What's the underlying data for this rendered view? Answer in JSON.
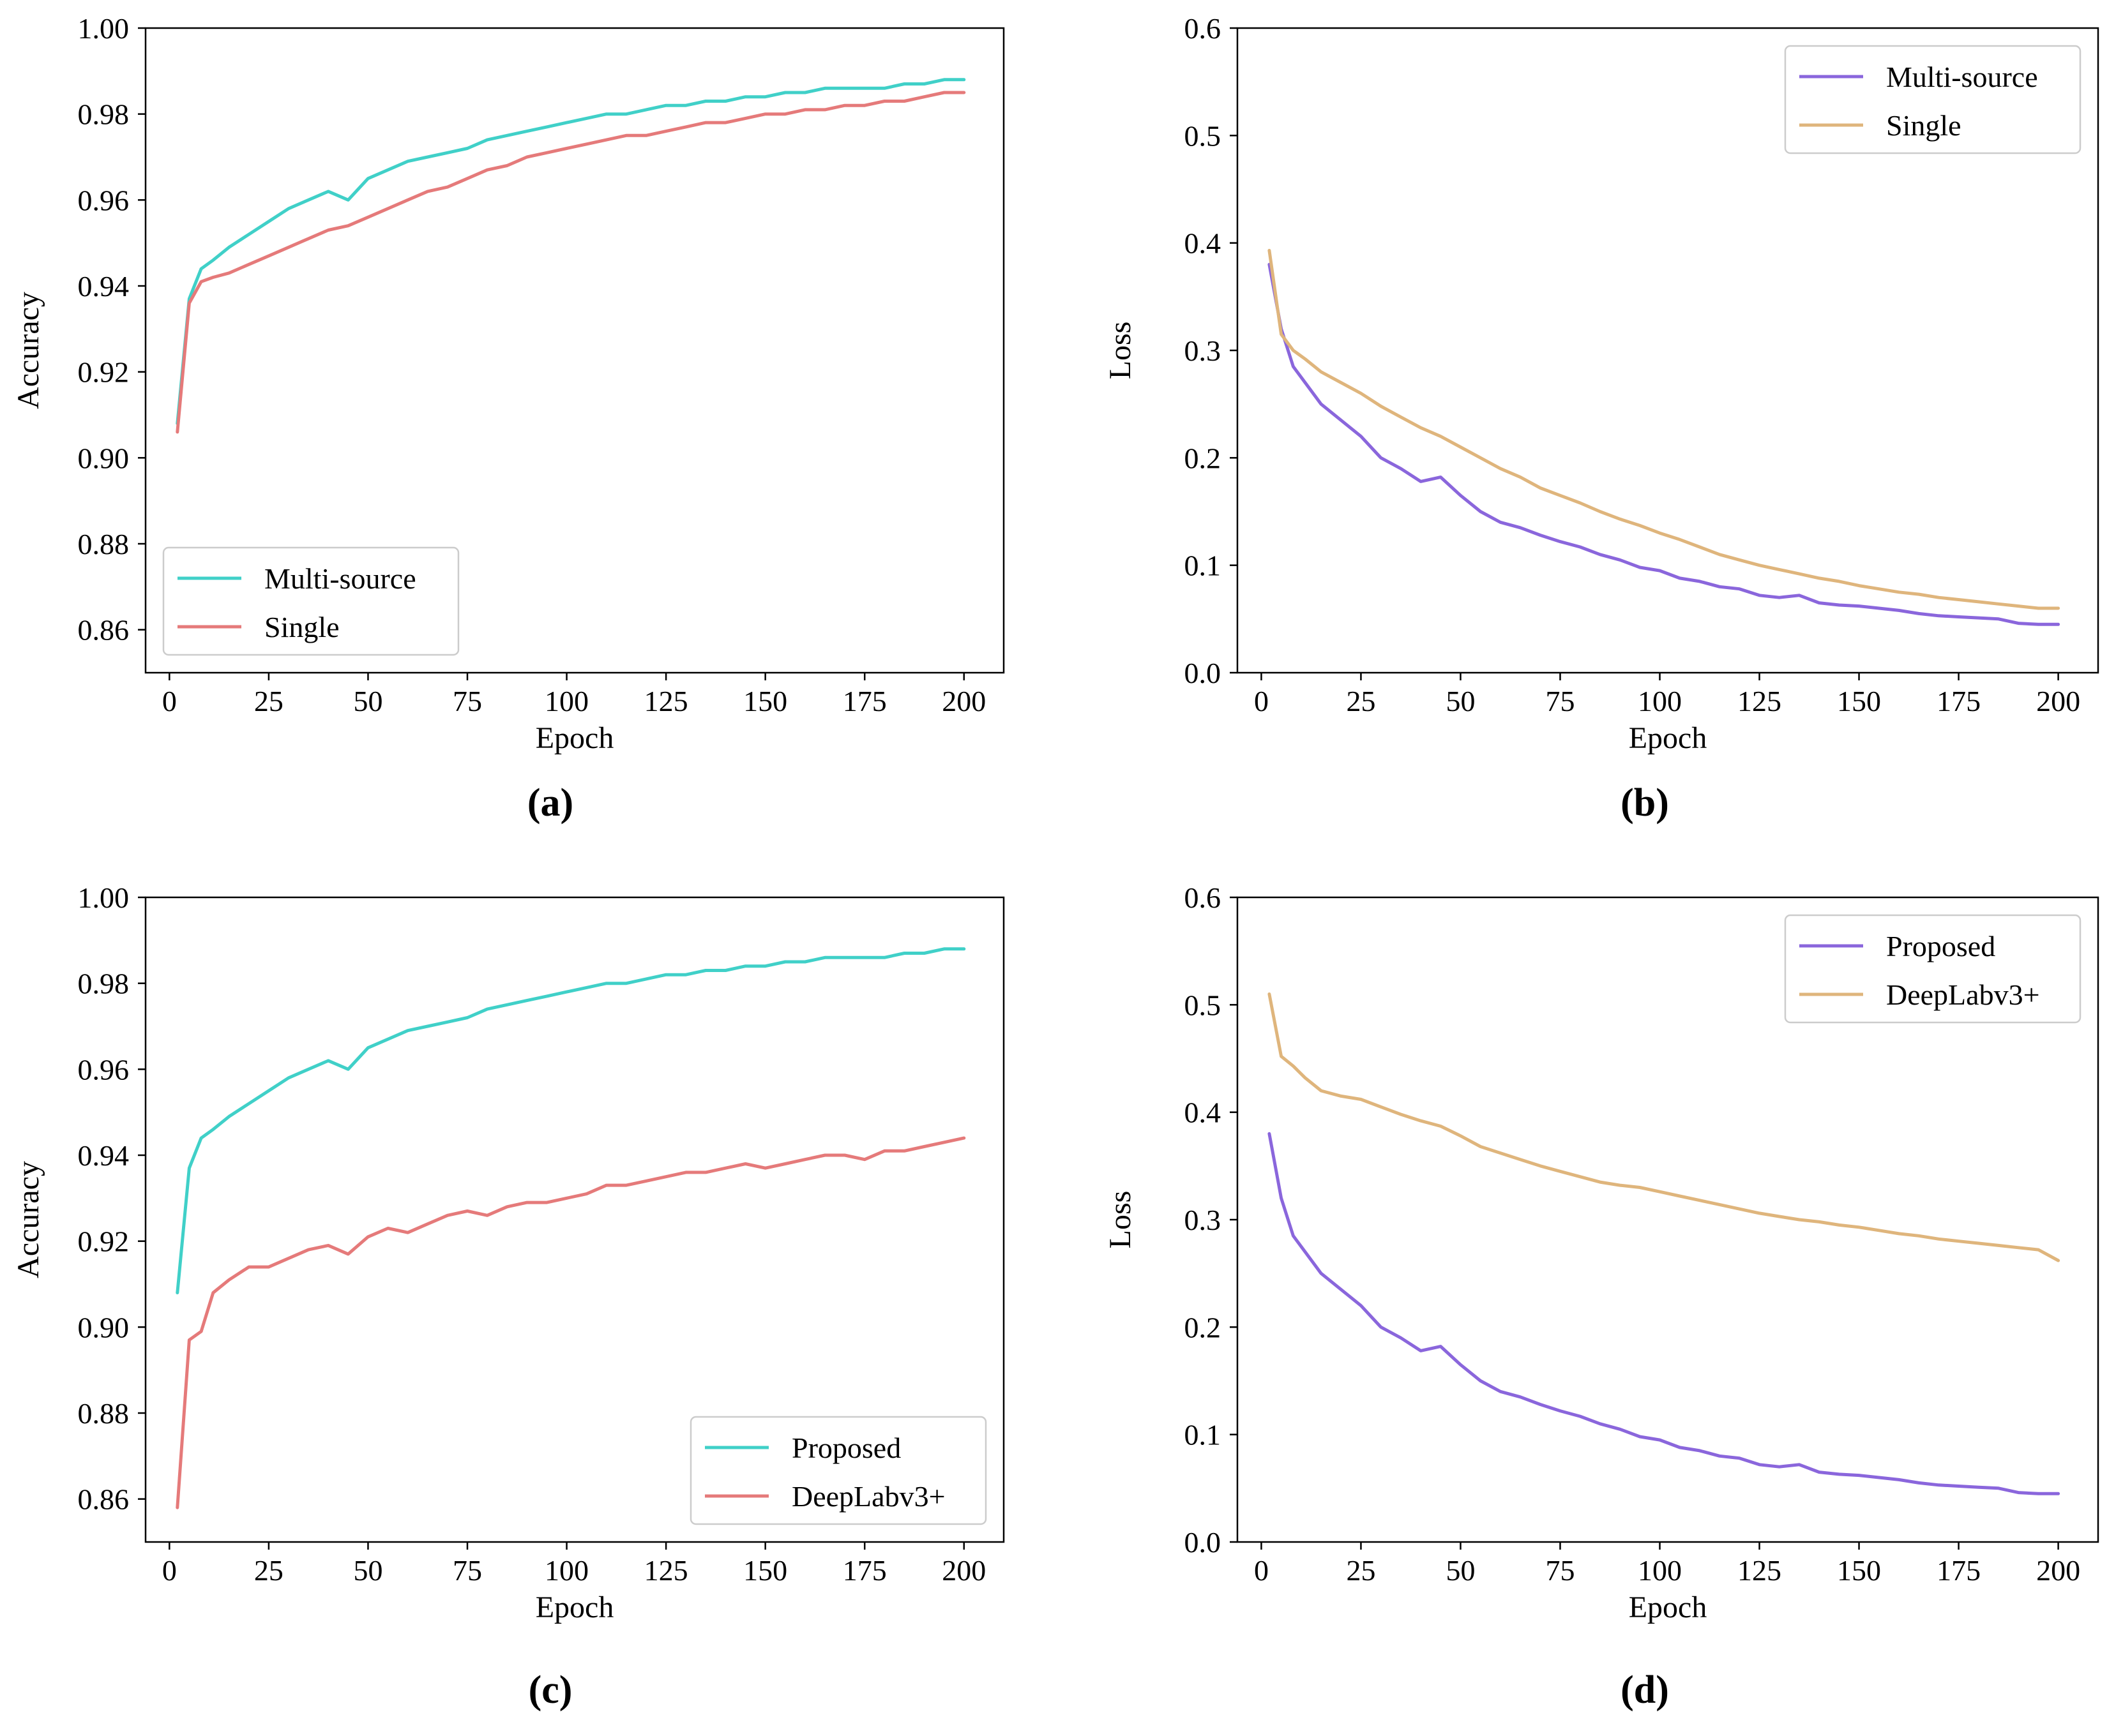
{
  "chart_data": [
    {
      "id": "a",
      "type": "line",
      "panel_label": "(a)",
      "xlabel": "Epoch",
      "ylabel": "Accuracy",
      "xlim": [
        -6,
        210
      ],
      "ylim": [
        0.85,
        1.0
      ],
      "xticks": [
        0,
        25,
        50,
        75,
        100,
        125,
        150,
        175,
        200
      ],
      "xtick_labels": [
        "0",
        "25",
        "50",
        "75",
        "100",
        "125",
        "150",
        "175",
        "200"
      ],
      "yticks": [
        0.86,
        0.88,
        0.9,
        0.92,
        0.94,
        0.96,
        0.98,
        1.0
      ],
      "ytick_labels": [
        "0.86",
        "0.88",
        "0.90",
        "0.92",
        "0.94",
        "0.96",
        "0.98",
        "1.00"
      ],
      "legend_position": "lower-left",
      "series": [
        {
          "name": "Multi-source",
          "color": "#40d0c8",
          "x": [
            2,
            5,
            8,
            11,
            15,
            20,
            25,
            30,
            35,
            40,
            45,
            50,
            55,
            60,
            65,
            70,
            75,
            80,
            85,
            90,
            95,
            100,
            105,
            110,
            115,
            120,
            125,
            130,
            135,
            140,
            145,
            150,
            155,
            160,
            165,
            170,
            175,
            180,
            185,
            190,
            195,
            200
          ],
          "values": [
            0.908,
            0.937,
            0.944,
            0.946,
            0.949,
            0.952,
            0.955,
            0.958,
            0.96,
            0.962,
            0.96,
            0.965,
            0.967,
            0.969,
            0.97,
            0.971,
            0.972,
            0.974,
            0.975,
            0.976,
            0.977,
            0.978,
            0.979,
            0.98,
            0.98,
            0.981,
            0.982,
            0.982,
            0.983,
            0.983,
            0.984,
            0.984,
            0.985,
            0.985,
            0.986,
            0.986,
            0.986,
            0.986,
            0.987,
            0.987,
            0.988,
            0.988
          ]
        },
        {
          "name": "Single",
          "color": "#e57a7a",
          "x": [
            2,
            5,
            8,
            11,
            15,
            20,
            25,
            30,
            35,
            40,
            45,
            50,
            55,
            60,
            65,
            70,
            75,
            80,
            85,
            90,
            95,
            100,
            105,
            110,
            115,
            120,
            125,
            130,
            135,
            140,
            145,
            150,
            155,
            160,
            165,
            170,
            175,
            180,
            185,
            190,
            195,
            200
          ],
          "values": [
            0.906,
            0.936,
            0.941,
            0.942,
            0.943,
            0.945,
            0.947,
            0.949,
            0.951,
            0.953,
            0.954,
            0.956,
            0.958,
            0.96,
            0.962,
            0.963,
            0.965,
            0.967,
            0.968,
            0.97,
            0.971,
            0.972,
            0.973,
            0.974,
            0.975,
            0.975,
            0.976,
            0.977,
            0.978,
            0.978,
            0.979,
            0.98,
            0.98,
            0.981,
            0.981,
            0.982,
            0.982,
            0.983,
            0.983,
            0.984,
            0.985,
            0.985
          ]
        }
      ]
    },
    {
      "id": "b",
      "type": "line",
      "panel_label": "(b)",
      "xlabel": "Epoch",
      "ylabel": "Loss",
      "xlim": [
        -6,
        210
      ],
      "ylim": [
        0.0,
        0.6
      ],
      "xticks": [
        0,
        25,
        50,
        75,
        100,
        125,
        150,
        175,
        200
      ],
      "xtick_labels": [
        "0",
        "25",
        "50",
        "75",
        "100",
        "125",
        "150",
        "175",
        "200"
      ],
      "yticks": [
        0.0,
        0.1,
        0.2,
        0.3,
        0.4,
        0.5,
        0.6
      ],
      "ytick_labels": [
        "0.0",
        "0.1",
        "0.2",
        "0.3",
        "0.4",
        "0.5",
        "0.6"
      ],
      "legend_position": "upper-right",
      "series": [
        {
          "name": "Multi-source",
          "color": "#8a66dc",
          "x": [
            2,
            5,
            8,
            11,
            15,
            20,
            25,
            30,
            35,
            40,
            45,
            50,
            55,
            60,
            65,
            70,
            75,
            80,
            85,
            90,
            95,
            100,
            105,
            110,
            115,
            120,
            125,
            130,
            135,
            140,
            145,
            150,
            155,
            160,
            165,
            170,
            175,
            180,
            185,
            190,
            195,
            200
          ],
          "values": [
            0.38,
            0.32,
            0.285,
            0.27,
            0.25,
            0.235,
            0.22,
            0.2,
            0.19,
            0.178,
            0.182,
            0.165,
            0.15,
            0.14,
            0.135,
            0.128,
            0.122,
            0.117,
            0.11,
            0.105,
            0.098,
            0.095,
            0.088,
            0.085,
            0.08,
            0.078,
            0.072,
            0.07,
            0.072,
            0.065,
            0.063,
            0.062,
            0.06,
            0.058,
            0.055,
            0.053,
            0.052,
            0.051,
            0.05,
            0.046,
            0.045,
            0.045
          ]
        },
        {
          "name": "Single",
          "color": "#dfb57c",
          "x": [
            2,
            5,
            8,
            11,
            15,
            20,
            25,
            30,
            35,
            40,
            45,
            50,
            55,
            60,
            65,
            70,
            75,
            80,
            85,
            90,
            95,
            100,
            105,
            110,
            115,
            120,
            125,
            130,
            135,
            140,
            145,
            150,
            155,
            160,
            165,
            170,
            175,
            180,
            185,
            190,
            195,
            200
          ],
          "values": [
            0.393,
            0.315,
            0.3,
            0.292,
            0.28,
            0.27,
            0.26,
            0.248,
            0.238,
            0.228,
            0.22,
            0.21,
            0.2,
            0.19,
            0.182,
            0.172,
            0.165,
            0.158,
            0.15,
            0.143,
            0.137,
            0.13,
            0.124,
            0.117,
            0.11,
            0.105,
            0.1,
            0.096,
            0.092,
            0.088,
            0.085,
            0.081,
            0.078,
            0.075,
            0.073,
            0.07,
            0.068,
            0.066,
            0.064,
            0.062,
            0.06,
            0.06
          ]
        }
      ]
    },
    {
      "id": "c",
      "type": "line",
      "panel_label": "(c)",
      "xlabel": "Epoch",
      "ylabel": "Accuracy",
      "xlim": [
        -6,
        210
      ],
      "ylim": [
        0.85,
        1.0
      ],
      "xticks": [
        0,
        25,
        50,
        75,
        100,
        125,
        150,
        175,
        200
      ],
      "xtick_labels": [
        "0",
        "25",
        "50",
        "75",
        "100",
        "125",
        "150",
        "175",
        "200"
      ],
      "yticks": [
        0.86,
        0.88,
        0.9,
        0.92,
        0.94,
        0.96,
        0.98,
        1.0
      ],
      "ytick_labels": [
        "0.86",
        "0.88",
        "0.90",
        "0.92",
        "0.94",
        "0.96",
        "0.98",
        "1.00"
      ],
      "legend_position": "lower-right",
      "series": [
        {
          "name": "Proposed",
          "color": "#40d0c8",
          "x": [
            2,
            5,
            8,
            11,
            15,
            20,
            25,
            30,
            35,
            40,
            45,
            50,
            55,
            60,
            65,
            70,
            75,
            80,
            85,
            90,
            95,
            100,
            105,
            110,
            115,
            120,
            125,
            130,
            135,
            140,
            145,
            150,
            155,
            160,
            165,
            170,
            175,
            180,
            185,
            190,
            195,
            200
          ],
          "values": [
            0.908,
            0.937,
            0.944,
            0.946,
            0.949,
            0.952,
            0.955,
            0.958,
            0.96,
            0.962,
            0.96,
            0.965,
            0.967,
            0.969,
            0.97,
            0.971,
            0.972,
            0.974,
            0.975,
            0.976,
            0.977,
            0.978,
            0.979,
            0.98,
            0.98,
            0.981,
            0.982,
            0.982,
            0.983,
            0.983,
            0.984,
            0.984,
            0.985,
            0.985,
            0.986,
            0.986,
            0.986,
            0.986,
            0.987,
            0.987,
            0.988,
            0.988
          ]
        },
        {
          "name": "DeepLabv3+",
          "color": "#e57a7a",
          "x": [
            2,
            5,
            8,
            11,
            15,
            20,
            25,
            30,
            35,
            40,
            45,
            50,
            55,
            60,
            65,
            70,
            75,
            80,
            85,
            90,
            95,
            100,
            105,
            110,
            115,
            120,
            125,
            130,
            135,
            140,
            145,
            150,
            155,
            160,
            165,
            170,
            175,
            180,
            185,
            190,
            195,
            200
          ],
          "values": [
            0.858,
            0.897,
            0.899,
            0.908,
            0.911,
            0.914,
            0.914,
            0.916,
            0.918,
            0.919,
            0.917,
            0.921,
            0.923,
            0.922,
            0.924,
            0.926,
            0.927,
            0.926,
            0.928,
            0.929,
            0.929,
            0.93,
            0.931,
            0.933,
            0.933,
            0.934,
            0.935,
            0.936,
            0.936,
            0.937,
            0.938,
            0.937,
            0.938,
            0.939,
            0.94,
            0.94,
            0.939,
            0.941,
            0.941,
            0.942,
            0.943,
            0.944
          ]
        }
      ]
    },
    {
      "id": "d",
      "type": "line",
      "panel_label": "(d)",
      "xlabel": "Epoch",
      "ylabel": "Loss",
      "xlim": [
        -6,
        210
      ],
      "ylim": [
        0.0,
        0.6
      ],
      "xticks": [
        0,
        25,
        50,
        75,
        100,
        125,
        150,
        175,
        200
      ],
      "xtick_labels": [
        "0",
        "25",
        "50",
        "75",
        "100",
        "125",
        "150",
        "175",
        "200"
      ],
      "yticks": [
        0.0,
        0.1,
        0.2,
        0.3,
        0.4,
        0.5,
        0.6
      ],
      "ytick_labels": [
        "0.0",
        "0.1",
        "0.2",
        "0.3",
        "0.4",
        "0.5",
        "0.6"
      ],
      "legend_position": "upper-right",
      "series": [
        {
          "name": "Proposed",
          "color": "#8a66dc",
          "x": [
            2,
            5,
            8,
            11,
            15,
            20,
            25,
            30,
            35,
            40,
            45,
            50,
            55,
            60,
            65,
            70,
            75,
            80,
            85,
            90,
            95,
            100,
            105,
            110,
            115,
            120,
            125,
            130,
            135,
            140,
            145,
            150,
            155,
            160,
            165,
            170,
            175,
            180,
            185,
            190,
            195,
            200
          ],
          "values": [
            0.38,
            0.32,
            0.285,
            0.27,
            0.25,
            0.235,
            0.22,
            0.2,
            0.19,
            0.178,
            0.182,
            0.165,
            0.15,
            0.14,
            0.135,
            0.128,
            0.122,
            0.117,
            0.11,
            0.105,
            0.098,
            0.095,
            0.088,
            0.085,
            0.08,
            0.078,
            0.072,
            0.07,
            0.072,
            0.065,
            0.063,
            0.062,
            0.06,
            0.058,
            0.055,
            0.053,
            0.052,
            0.051,
            0.05,
            0.046,
            0.045,
            0.045
          ]
        },
        {
          "name": "DeepLabv3+",
          "color": "#dfb57c",
          "x": [
            2,
            5,
            8,
            11,
            15,
            20,
            25,
            30,
            35,
            40,
            45,
            50,
            55,
            60,
            65,
            70,
            75,
            80,
            85,
            90,
            95,
            100,
            105,
            110,
            115,
            120,
            125,
            130,
            135,
            140,
            145,
            150,
            155,
            160,
            165,
            170,
            175,
            180,
            185,
            190,
            195,
            200
          ],
          "values": [
            0.51,
            0.452,
            0.443,
            0.432,
            0.42,
            0.415,
            0.412,
            0.405,
            0.398,
            0.392,
            0.387,
            0.378,
            0.368,
            0.362,
            0.356,
            0.35,
            0.345,
            0.34,
            0.335,
            0.332,
            0.33,
            0.326,
            0.322,
            0.318,
            0.314,
            0.31,
            0.306,
            0.303,
            0.3,
            0.298,
            0.295,
            0.293,
            0.29,
            0.287,
            0.285,
            0.282,
            0.28,
            0.278,
            0.276,
            0.274,
            0.272,
            0.262
          ]
        }
      ]
    }
  ]
}
